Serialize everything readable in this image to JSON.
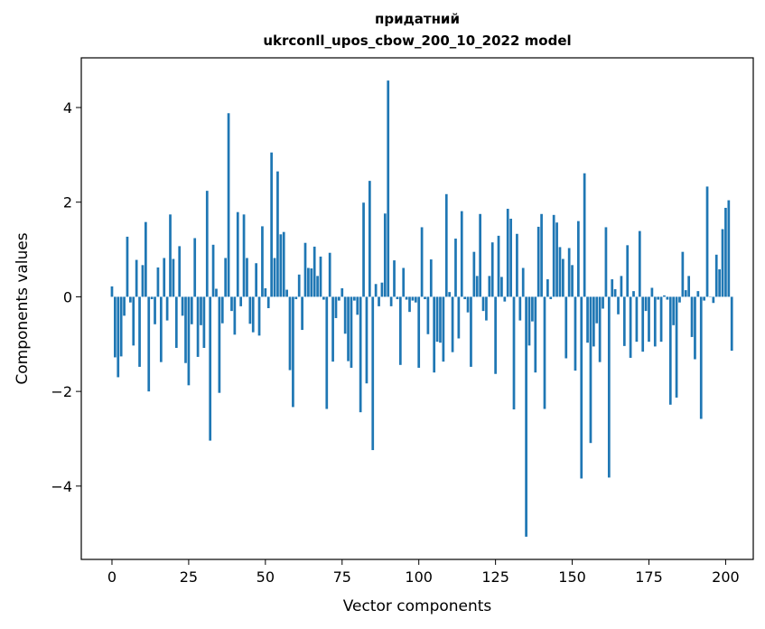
{
  "chart_data": {
    "type": "bar",
    "title": "придатний",
    "subtitle": "ukrconll_upos_cbow_200_10_2022 model",
    "xlabel": "Vector components",
    "ylabel": "Components values",
    "xlim": [
      -10,
      209
    ],
    "ylim": [
      -5.55,
      5.05
    ],
    "xticks": [
      0,
      25,
      50,
      75,
      100,
      125,
      150,
      175,
      200
    ],
    "yticks": [
      -4,
      -2,
      0,
      2,
      4
    ],
    "xtick_labels": [
      "0",
      "25",
      "50",
      "75",
      "100",
      "125",
      "150",
      "175",
      "200"
    ],
    "ytick_labels": [
      "−4",
      "−2",
      "0",
      "2",
      "4"
    ],
    "grid": false,
    "bar_color": "#1f77b4",
    "values": [
      0.22,
      -1.28,
      -1.7,
      -1.26,
      -0.4,
      1.27,
      -0.12,
      -1.03,
      0.78,
      -1.48,
      0.67,
      1.58,
      -2.0,
      -0.05,
      -0.58,
      0.62,
      -1.38,
      0.82,
      -0.5,
      1.74,
      0.8,
      -1.08,
      1.07,
      -0.4,
      -1.4,
      -1.87,
      -0.58,
      1.24,
      -1.27,
      -0.6,
      -1.08,
      2.24,
      -3.04,
      1.1,
      0.17,
      -2.03,
      -0.56,
      0.82,
      3.88,
      -0.3,
      -0.8,
      1.79,
      -0.2,
      1.74,
      0.82,
      -0.57,
      -0.75,
      0.71,
      -0.82,
      1.49,
      0.18,
      -0.24,
      3.05,
      0.82,
      2.65,
      1.32,
      1.37,
      0.15,
      -1.55,
      -2.33,
      -0.05,
      0.47,
      -0.7,
      1.14,
      0.61,
      0.6,
      1.06,
      0.44,
      0.85,
      -0.06,
      -2.37,
      0.93,
      -1.37,
      -0.45,
      -0.08,
      0.18,
      -0.78,
      -1.36,
      -1.5,
      -0.08,
      -0.38,
      -2.44,
      1.99,
      -1.83,
      2.45,
      -3.24,
      0.27,
      -0.2,
      0.3,
      1.76,
      4.57,
      -0.2,
      0.77,
      -0.05,
      -1.44,
      0.61,
      -0.06,
      -0.32,
      -0.08,
      -0.12,
      -1.5,
      1.47,
      -0.05,
      -0.79,
      0.79,
      -1.6,
      -0.95,
      -0.97,
      -1.37,
      2.17,
      0.1,
      -1.17,
      1.23,
      -0.88,
      1.81,
      -0.05,
      -0.33,
      -1.48,
      0.95,
      0.44,
      1.75,
      -0.3,
      -0.5,
      0.44,
      1.15,
      -1.63,
      1.29,
      0.42,
      -0.1,
      1.86,
      1.65,
      -2.38,
      1.33,
      -0.5,
      0.61,
      -5.07,
      -1.03,
      -0.52,
      -1.6,
      1.48,
      1.75,
      -2.37,
      0.37,
      -0.05,
      1.73,
      1.57,
      1.05,
      0.8,
      -1.3,
      1.03,
      0.67,
      -1.56,
      1.6,
      -3.84,
      2.61,
      -0.97,
      -3.09,
      -1.05,
      -0.56,
      -1.38,
      -0.25,
      1.47,
      -3.82,
      0.37,
      0.16,
      -0.37,
      0.44,
      -1.04,
      1.09,
      -1.29,
      0.12,
      -0.95,
      1.39,
      -1.16,
      -0.3,
      -0.95,
      0.19,
      -1.05,
      -0.06,
      -0.95,
      0.03,
      -0.06,
      -2.28,
      -0.6,
      -2.13,
      -0.12,
      0.95,
      0.14,
      0.44,
      -0.85,
      -1.32,
      0.12,
      -2.58,
      -0.08,
      2.33,
      0.0,
      -0.13,
      0.89,
      0.58,
      1.43,
      1.88,
      2.04,
      -1.14
    ]
  }
}
